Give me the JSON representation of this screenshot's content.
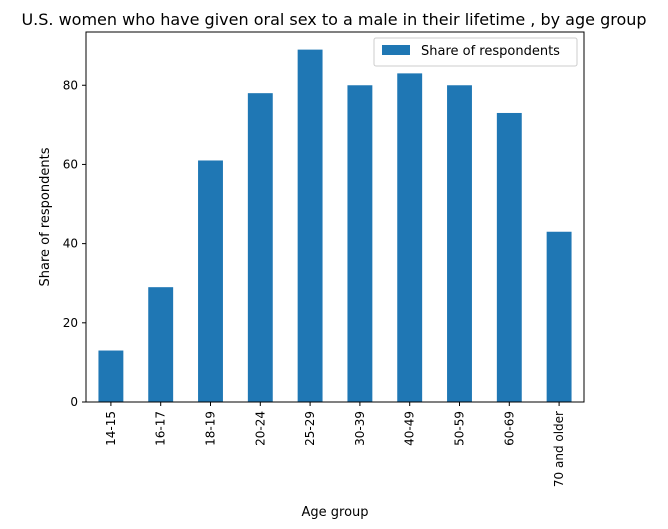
{
  "chart_data": {
    "type": "bar",
    "title": "U.S. women who have given oral sex to a male in their lifetime , by age group",
    "xlabel": "Age group",
    "ylabel": "Share of respondents",
    "categories": [
      "14-15",
      "16-17",
      "18-19",
      "20-24",
      "25-29",
      "30-39",
      "40-49",
      "50-59",
      "60-69",
      "70 and older"
    ],
    "series": [
      {
        "name": "Share of respondents",
        "values": [
          13,
          29,
          61,
          78,
          89,
          80,
          83,
          80,
          73,
          43
        ],
        "color": "#1f77b4"
      }
    ],
    "ylim": [
      0,
      93.45
    ],
    "yticks": [
      0,
      20,
      40,
      60,
      80
    ],
    "grid": false,
    "legend_position": "top-right"
  }
}
